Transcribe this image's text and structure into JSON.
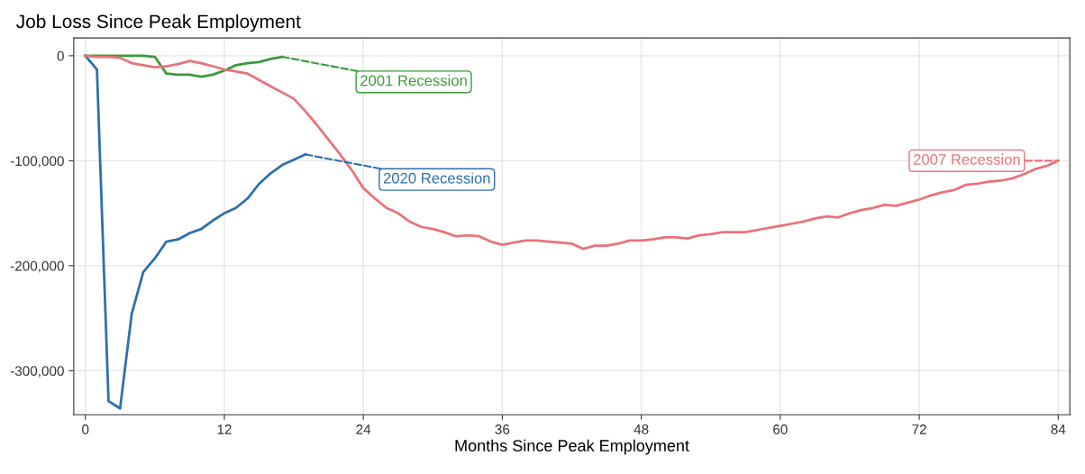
{
  "chart_data": {
    "type": "line",
    "title": "Job Loss Since Peak Employment",
    "xlabel": "Months Since Peak Employment",
    "xlim": [
      -1,
      85
    ],
    "xticks": [
      0,
      12,
      24,
      36,
      48,
      60,
      72,
      84
    ],
    "ylim": [
      -342000,
      17000
    ],
    "yticks": [
      {
        "value": -300000,
        "label": "-300,000"
      },
      {
        "value": -200000,
        "label": "-200,000"
      },
      {
        "value": -100000,
        "label": "-100,000"
      },
      0
    ],
    "grid": true,
    "marker": "none",
    "line_style": "solid",
    "series": [
      {
        "name": "2001 Recession",
        "color": "#3a9a3a",
        "x": [
          0,
          1,
          2,
          3,
          4,
          5,
          6,
          7,
          8,
          9,
          10,
          11,
          12,
          13,
          14,
          15,
          16,
          17
        ],
        "values": [
          0,
          0,
          0,
          0,
          0,
          0,
          -1000,
          -17000,
          -18000,
          -18000,
          -20000,
          -18000,
          -14000,
          -9000,
          -7000,
          -6000,
          -3000,
          -1000
        ]
      },
      {
        "name": "2020 Recession",
        "color": "#2e6fad",
        "x": [
          0,
          1,
          2,
          3,
          4,
          5,
          6,
          7,
          8,
          9,
          10,
          11,
          12,
          13,
          14,
          15,
          16,
          17,
          18,
          19
        ],
        "values": [
          0,
          -13000,
          -329000,
          -336000,
          -246000,
          -206000,
          -193000,
          -177000,
          -175000,
          -169000,
          -165000,
          -157000,
          -150000,
          -145000,
          -136000,
          -122000,
          -112000,
          -104000,
          -99000,
          -94000
        ]
      },
      {
        "name": "2007 Recession",
        "color": "#e8737a",
        "x": [
          0,
          1,
          2,
          3,
          4,
          5,
          6,
          7,
          8,
          9,
          10,
          11,
          12,
          13,
          14,
          15,
          16,
          17,
          18,
          19,
          20,
          21,
          22,
          23,
          24,
          25,
          26,
          27,
          28,
          29,
          30,
          31,
          32,
          33,
          34,
          35,
          36,
          37,
          38,
          39,
          40,
          41,
          42,
          43,
          44,
          45,
          46,
          47,
          48,
          49,
          50,
          51,
          52,
          53,
          54,
          55,
          56,
          57,
          58,
          59,
          60,
          61,
          62,
          63,
          64,
          65,
          66,
          67,
          68,
          69,
          70,
          71,
          72,
          73,
          74,
          75,
          76,
          77,
          78,
          79,
          80,
          81,
          82,
          83,
          84
        ],
        "values": [
          0,
          -1000,
          -1000,
          -2000,
          -7000,
          -9000,
          -11000,
          -10000,
          -8000,
          -5000,
          -7000,
          -10000,
          -13000,
          -15000,
          -17000,
          -23000,
          -29000,
          -35000,
          -41000,
          -53000,
          -66000,
          -80000,
          -94000,
          -109000,
          -126000,
          -136000,
          -145000,
          -150000,
          -158000,
          -163000,
          -165000,
          -168000,
          -172000,
          -171000,
          -172000,
          -177000,
          -180000,
          -178000,
          -176000,
          -176000,
          -177000,
          -178000,
          -179000,
          -184000,
          -181000,
          -181000,
          -179000,
          -176000,
          -176000,
          -175000,
          -173000,
          -173000,
          -174000,
          -171000,
          -170000,
          -168000,
          -168000,
          -168000,
          -166000,
          -164000,
          -162000,
          -160000,
          -158000,
          -155000,
          -153000,
          -154000,
          -150000,
          -147000,
          -145000,
          -142000,
          -143000,
          -140000,
          -137000,
          -133000,
          -130000,
          -128000,
          -123000,
          -122000,
          -120000,
          -119000,
          -117000,
          -113000,
          -108000,
          -105000,
          -100000
        ]
      }
    ]
  }
}
